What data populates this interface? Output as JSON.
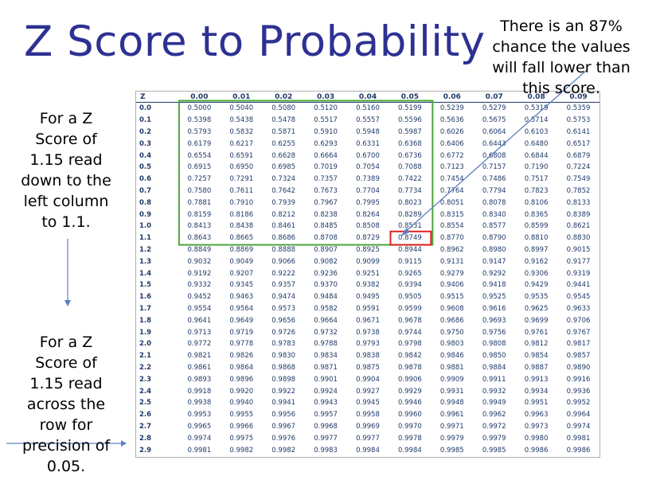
{
  "title": "Z Score to Probability",
  "notes": {
    "top": "There is an  87%\nchance the values\nwill fall lower than\nthis score.",
    "left_top": "For a Z\nScore of\n1.15 read\ndown to the\nleft column\nto 1.1.",
    "left_bottom": "For a Z\nScore of\n1.15 read\nacross the\nrow for\nprecision of\n0.05."
  },
  "colors": {
    "title": "#2e3192",
    "table_text": "#1f3a68",
    "highlight_box": "#4aa83a",
    "selected_cell": "#e02020",
    "arrow": "#5b7fc2"
  },
  "table": {
    "headers": [
      "Z",
      "0.00",
      "0.01",
      "0.02",
      "0.03",
      "0.04",
      "0.05",
      "0.06",
      "0.07",
      "0.08",
      "0.09"
    ],
    "rows": [
      [
        "0.0",
        "0.5000",
        "0.5040",
        "0.5080",
        "0.5120",
        "0.5160",
        "0.5199",
        "0.5239",
        "0.5279",
        "0.5319",
        "0.5359"
      ],
      [
        "0.1",
        "0.5398",
        "0.5438",
        "0.5478",
        "0.5517",
        "0.5557",
        "0.5596",
        "0.5636",
        "0.5675",
        "0.5714",
        "0.5753"
      ],
      [
        "0.2",
        "0.5793",
        "0.5832",
        "0.5871",
        "0.5910",
        "0.5948",
        "0.5987",
        "0.6026",
        "0.6064",
        "0.6103",
        "0.6141"
      ],
      [
        "0.3",
        "0.6179",
        "0.6217",
        "0.6255",
        "0.6293",
        "0.6331",
        "0.6368",
        "0.6406",
        "0.6443",
        "0.6480",
        "0.6517"
      ],
      [
        "0.4",
        "0.6554",
        "0.6591",
        "0.6628",
        "0.6664",
        "0.6700",
        "0.6736",
        "0.6772",
        "0.6808",
        "0.6844",
        "0.6879"
      ],
      [
        "0.5",
        "0.6915",
        "0.6950",
        "0.6985",
        "0.7019",
        "0.7054",
        "0.7088",
        "0.7123",
        "0.7157",
        "0.7190",
        "0.7224"
      ],
      [
        "0.6",
        "0.7257",
        "0.7291",
        "0.7324",
        "0.7357",
        "0.7389",
        "0.7422",
        "0.7454",
        "0.7486",
        "0.7517",
        "0.7549"
      ],
      [
        "0.7",
        "0.7580",
        "0.7611",
        "0.7642",
        "0.7673",
        "0.7704",
        "0.7734",
        "0.7764",
        "0.7794",
        "0.7823",
        "0.7852"
      ],
      [
        "0.8",
        "0.7881",
        "0.7910",
        "0.7939",
        "0.7967",
        "0.7995",
        "0.8023",
        "0.8051",
        "0.8078",
        "0.8106",
        "0.8133"
      ],
      [
        "0.9",
        "0.8159",
        "0.8186",
        "0.8212",
        "0.8238",
        "0.8264",
        "0.8289",
        "0.8315",
        "0.8340",
        "0.8365",
        "0.8389"
      ],
      [
        "1.0",
        "0.8413",
        "0.8438",
        "0.8461",
        "0.8485",
        "0.8508",
        "0.8531",
        "0.8554",
        "0.8577",
        "0.8599",
        "0.8621"
      ],
      [
        "1.1",
        "0.8643",
        "0.8665",
        "0.8686",
        "0.8708",
        "0.8729",
        "0.8749",
        "0.8770",
        "0.8790",
        "0.8810",
        "0.8830"
      ],
      [
        "1.2",
        "0.8849",
        "0.8869",
        "0.8888",
        "0.8907",
        "0.8925",
        "0.8944",
        "0.8962",
        "0.8980",
        "0.8997",
        "0.9015"
      ],
      [
        "1.3",
        "0.9032",
        "0.9049",
        "0.9066",
        "0.9082",
        "0.9099",
        "0.9115",
        "0.9131",
        "0.9147",
        "0.9162",
        "0.9177"
      ],
      [
        "1.4",
        "0.9192",
        "0.9207",
        "0.9222",
        "0.9236",
        "0.9251",
        "0.9265",
        "0.9279",
        "0.9292",
        "0.9306",
        "0.9319"
      ],
      [
        "1.5",
        "0.9332",
        "0.9345",
        "0.9357",
        "0.9370",
        "0.9382",
        "0.9394",
        "0.9406",
        "0.9418",
        "0.9429",
        "0.9441"
      ],
      [
        "1.6",
        "0.9452",
        "0.9463",
        "0.9474",
        "0.9484",
        "0.9495",
        "0.9505",
        "0.9515",
        "0.9525",
        "0.9535",
        "0.9545"
      ],
      [
        "1.7",
        "0.9554",
        "0.9564",
        "0.9573",
        "0.9582",
        "0.9591",
        "0.9599",
        "0.9608",
        "0.9616",
        "0.9625",
        "0.9633"
      ],
      [
        "1.8",
        "0.9641",
        "0.9649",
        "0.9656",
        "0.9664",
        "0.9671",
        "0.9678",
        "0.9686",
        "0.9693",
        "0.9699",
        "0.9706"
      ],
      [
        "1.9",
        "0.9713",
        "0.9719",
        "0.9726",
        "0.9732",
        "0.9738",
        "0.9744",
        "0.9750",
        "0.9756",
        "0.9761",
        "0.9767"
      ],
      [
        "2.0",
        "0.9772",
        "0.9778",
        "0.9783",
        "0.9788",
        "0.9793",
        "0.9798",
        "0.9803",
        "0.9808",
        "0.9812",
        "0.9817"
      ],
      [
        "2.1",
        "0.9821",
        "0.9826",
        "0.9830",
        "0.9834",
        "0.9838",
        "0.9842",
        "0.9846",
        "0.9850",
        "0.9854",
        "0.9857"
      ],
      [
        "2.2",
        "0.9861",
        "0.9864",
        "0.9868",
        "0.9871",
        "0.9875",
        "0.9878",
        "0.9881",
        "0.9884",
        "0.9887",
        "0.9890"
      ],
      [
        "2.3",
        "0.9893",
        "0.9896",
        "0.9898",
        "0.9901",
        "0.9904",
        "0.9906",
        "0.9909",
        "0.9911",
        "0.9913",
        "0.9916"
      ],
      [
        "2.4",
        "0.9918",
        "0.9920",
        "0.9922",
        "0.9924",
        "0.9927",
        "0.9929",
        "0.9931",
        "0.9932",
        "0.9934",
        "0.9936"
      ],
      [
        "2.5",
        "0.9938",
        "0.9940",
        "0.9941",
        "0.9943",
        "0.9945",
        "0.9946",
        "0.9948",
        "0.9949",
        "0.9951",
        "0.9952"
      ],
      [
        "2.6",
        "0.9953",
        "0.9955",
        "0.9956",
        "0.9957",
        "0.9958",
        "0.9960",
        "0.9961",
        "0.9962",
        "0.9963",
        "0.9964"
      ],
      [
        "2.7",
        "0.9965",
        "0.9966",
        "0.9967",
        "0.9968",
        "0.9969",
        "0.9970",
        "0.9971",
        "0.9972",
        "0.9973",
        "0.9974"
      ],
      [
        "2.8",
        "0.9974",
        "0.9975",
        "0.9976",
        "0.9977",
        "0.9977",
        "0.9978",
        "0.9979",
        "0.9979",
        "0.9980",
        "0.9981"
      ],
      [
        "2.9",
        "0.9981",
        "0.9982",
        "0.9982",
        "0.9983",
        "0.9984",
        "0.9984",
        "0.9985",
        "0.9985",
        "0.9986",
        "0.9986"
      ]
    ],
    "highlight": {
      "rows_through": "1.1",
      "columns_through": "0.05"
    },
    "selected": {
      "row": "1.1",
      "column": "0.05",
      "value": "0.8749"
    }
  }
}
